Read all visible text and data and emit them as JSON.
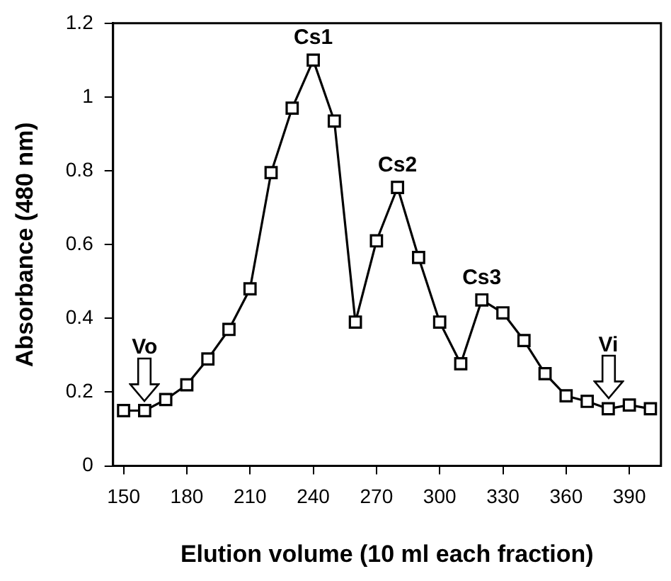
{
  "chart_data": {
    "type": "line",
    "xlabel": "Elution volume (10 ml each fraction)",
    "ylabel": "Absorbance (480 nm)",
    "x": [
      150,
      160,
      170,
      180,
      190,
      200,
      210,
      220,
      230,
      240,
      250,
      260,
      270,
      280,
      290,
      300,
      310,
      320,
      330,
      340,
      350,
      360,
      370,
      380,
      390,
      400
    ],
    "series": [
      {
        "color": "#000000",
        "values": [
          0.15,
          0.15,
          0.18,
          0.22,
          0.29,
          0.37,
          0.48,
          0.795,
          0.97,
          1.1,
          0.935,
          0.39,
          0.61,
          0.755,
          0.565,
          0.39,
          0.277,
          0.45,
          0.415,
          0.34,
          0.25,
          0.19,
          0.175,
          0.155,
          0.165,
          0.155
        ]
      }
    ],
    "xlim": [
      145,
      405
    ],
    "xticks": [
      150,
      180,
      210,
      240,
      270,
      300,
      330,
      360,
      390
    ],
    "ylim": [
      0,
      1.2
    ],
    "yticks": [
      0,
      0.2,
      0.4,
      0.6,
      0.8,
      1,
      1.2
    ],
    "annotations": [
      {
        "text": "Cs1",
        "x": 240,
        "y": 1.1
      },
      {
        "text": "Cs2",
        "x": 280,
        "y": 0.755
      },
      {
        "text": "Cs3",
        "x": 320,
        "y": 0.45
      },
      {
        "text": "Vo",
        "x": 160,
        "y": 0.15
      },
      {
        "text": "Vi",
        "x": 380,
        "y": 0.155
      }
    ],
    "grid": false,
    "legend": false,
    "marker": "square",
    "line_style": "solid"
  }
}
